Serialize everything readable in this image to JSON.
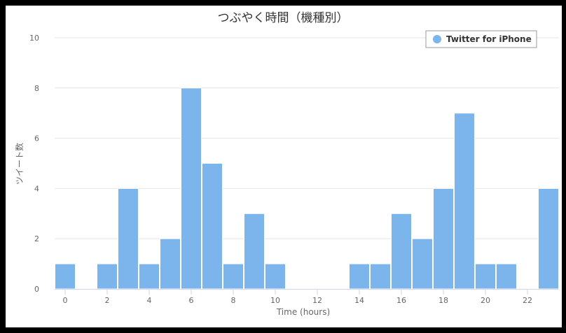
{
  "chart_data": {
    "type": "bar",
    "title": "つぶやく時間（機種別）",
    "xlabel": "Time (hours)",
    "ylabel": "ツイート数",
    "x_ticks": [
      "0",
      "2",
      "4",
      "6",
      "8",
      "10",
      "12",
      "14",
      "16",
      "18",
      "20",
      "22"
    ],
    "y_ticks": [
      "0",
      "2",
      "4",
      "6",
      "8",
      "10"
    ],
    "xlim": [
      -0.5,
      23.5
    ],
    "ylim": [
      0,
      10
    ],
    "grid": true,
    "legend": "top-right",
    "colors": {
      "bar": "#7cb5ec",
      "grid": "#e6e6e6",
      "axis": "#ccd6eb"
    },
    "categories": [
      0,
      1,
      2,
      3,
      4,
      5,
      6,
      7,
      8,
      9,
      10,
      11,
      12,
      13,
      14,
      15,
      16,
      17,
      18,
      19,
      20,
      21,
      22,
      23
    ],
    "series": [
      {
        "name": "Twitter for iPhone",
        "values": [
          1,
          0,
          1,
          4,
          1,
          2,
          8,
          5,
          1,
          3,
          1,
          0,
          0,
          0,
          1,
          1,
          3,
          2,
          4,
          7,
          1,
          1,
          0,
          4
        ]
      }
    ]
  }
}
